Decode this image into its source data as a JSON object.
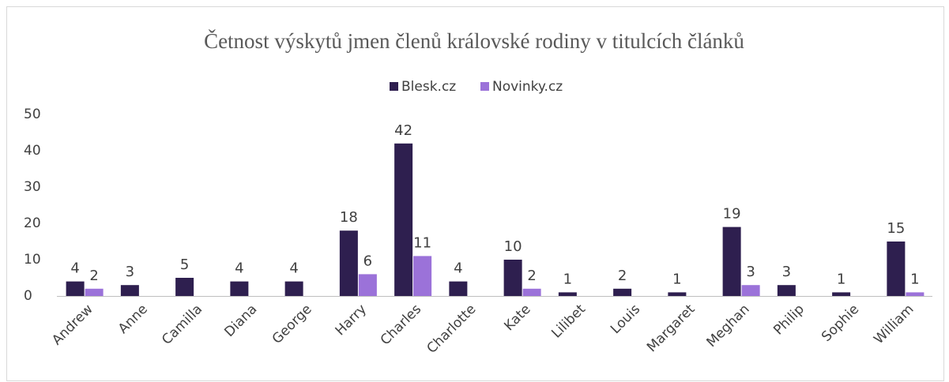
{
  "chart_data": {
    "type": "bar",
    "title": "Četnost výskytů jmen členů královské rodiny v titulcích článků",
    "categories": [
      "Andrew",
      "Anne",
      "Camilla",
      "Diana",
      "George",
      "Harry",
      "Charles",
      "Charlotte",
      "Kate",
      "Lilibet",
      "Louis",
      "Margaret",
      "Meghan",
      "Philip",
      "Sophie",
      "William"
    ],
    "series": [
      {
        "name": "Blesk.cz",
        "color": "#2e1f4f",
        "values": [
          4,
          3,
          5,
          4,
          4,
          18,
          42,
          4,
          10,
          1,
          2,
          1,
          19,
          3,
          1,
          15
        ]
      },
      {
        "name": "Novinky.cz",
        "color": "#9b72d9",
        "values": [
          2,
          null,
          null,
          null,
          null,
          6,
          11,
          null,
          2,
          null,
          null,
          null,
          3,
          null,
          null,
          1
        ]
      }
    ],
    "ylim": [
      0,
      50
    ],
    "yticks": [
      0,
      10,
      20,
      30,
      40,
      50
    ],
    "grid": false,
    "legend": "top"
  }
}
